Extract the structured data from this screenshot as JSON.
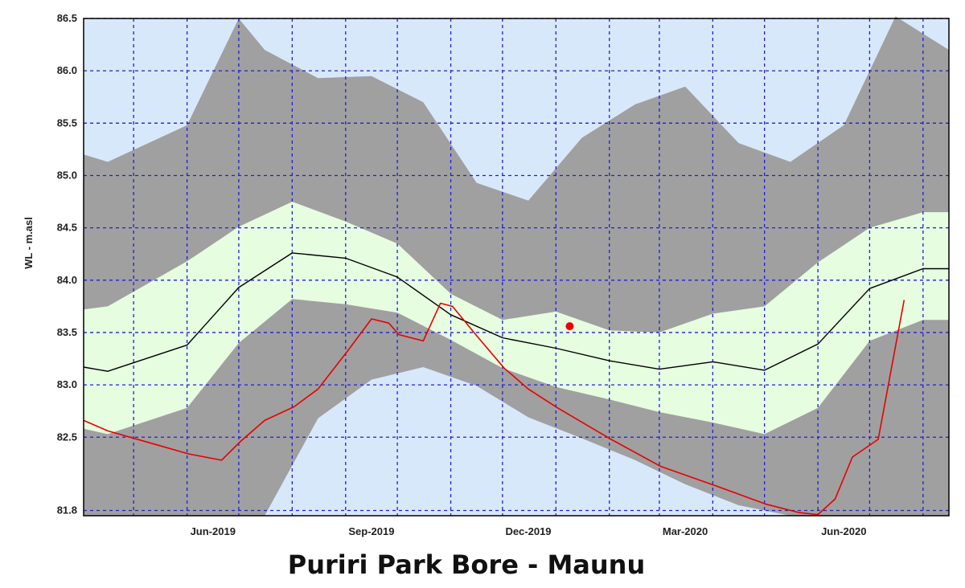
{
  "caption": "Puriri Park Bore - Maunu",
  "chart_data": {
    "type": "area",
    "ylabel": "WL - m.asl",
    "ylim": [
      81.75,
      86.5
    ],
    "xlim": [
      "2019-04-01",
      "2020-08-15"
    ],
    "y_ticks": [
      81.8,
      82.5,
      83.0,
      83.5,
      84.0,
      84.5,
      85.0,
      85.5,
      86.0,
      86.5
    ],
    "y_tick_labels": [
      "81.8",
      "82.5",
      "83.0",
      "83.5",
      "84.0",
      "84.5",
      "85.0",
      "85.5",
      "86.0",
      "86.5"
    ],
    "x_ticks": [
      "2019-06-15",
      "2019-09-15",
      "2019-12-15",
      "2020-03-15",
      "2020-06-15"
    ],
    "x_tick_labels": [
      "Jun-2019",
      "Sep-2019",
      "Dec-2019",
      "Mar-2020",
      "Jun-2020"
    ],
    "grid": true,
    "grid_x": [
      "2019-04-30",
      "2019-05-31",
      "2019-06-30",
      "2019-07-31",
      "2019-08-31",
      "2019-09-30",
      "2019-10-31",
      "2019-11-30",
      "2019-12-31",
      "2020-01-31",
      "2020-02-29",
      "2020-03-31",
      "2020-04-30",
      "2020-05-31",
      "2020-06-30",
      "2020-07-31"
    ],
    "colors": {
      "background": "#d8e8fb",
      "grid": "#1f1fd8",
      "minmax_band": "#a0a0a0",
      "percentile_band": "#e6fde0",
      "median_line": "#000000",
      "observed_line": "#e80000",
      "current_point": "#ee0000"
    },
    "series": [
      {
        "kind": "band",
        "x": [
          "2019-04-01",
          "2019-04-15",
          "2019-05-31",
          "2019-06-30",
          "2019-07-15",
          "2019-08-15",
          "2019-09-15",
          "2019-10-15",
          "2019-11-15",
          "2019-12-15",
          "2020-01-15",
          "2020-02-15",
          "2020-03-15",
          "2020-04-15",
          "2020-05-15",
          "2020-06-15",
          "2020-07-15",
          "2020-08-15"
        ],
        "upper": [
          85.2,
          85.13,
          85.48,
          86.5,
          86.2,
          85.93,
          85.95,
          85.7,
          84.93,
          84.76,
          85.36,
          85.68,
          85.85,
          85.31,
          85.13,
          85.48,
          86.52,
          86.2
        ],
        "lower": [
          81.75,
          81.75,
          81.75,
          81.75,
          81.75,
          81.75,
          81.75,
          81.75,
          81.75,
          81.75,
          81.75,
          81.75,
          81.75,
          81.75,
          81.75,
          81.75,
          81.75,
          81.75
        ]
      },
      {
        "kind": "band",
        "x": [
          "2019-04-01",
          "2019-04-15",
          "2019-05-31",
          "2019-06-30",
          "2019-07-15",
          "2019-08-15",
          "2019-09-15",
          "2019-10-15",
          "2019-11-15",
          "2019-12-15",
          "2020-01-15",
          "2020-02-15",
          "2020-03-15",
          "2020-04-15",
          "2020-05-15",
          "2020-06-15",
          "2020-07-15",
          "2020-08-15"
        ],
        "upper": [
          81.75,
          81.75,
          81.75,
          81.75,
          81.75,
          82.68,
          83.05,
          83.17,
          82.99,
          82.69,
          82.49,
          82.28,
          82.05,
          81.85,
          81.75,
          81.75,
          81.75,
          81.75
        ],
        "lower": [
          81.75,
          81.75,
          81.75,
          81.75,
          81.75,
          81.75,
          81.75,
          81.75,
          81.75,
          81.75,
          81.75,
          81.75,
          81.75,
          81.75,
          81.75,
          81.75,
          81.75,
          81.75
        ]
      },
      {
        "kind": "band",
        "x": [
          "2019-04-01",
          "2019-04-15",
          "2019-05-31",
          "2019-06-30",
          "2019-07-31",
          "2019-08-31",
          "2019-09-30",
          "2019-10-31",
          "2019-11-30",
          "2019-12-31",
          "2020-01-31",
          "2020-02-29",
          "2020-03-31",
          "2020-04-30",
          "2020-05-31",
          "2020-06-30",
          "2020-07-31",
          "2020-08-15"
        ],
        "upper": [
          83.72,
          83.75,
          84.18,
          84.51,
          84.75,
          84.56,
          84.35,
          83.87,
          83.62,
          83.7,
          83.52,
          83.5,
          83.68,
          83.75,
          84.17,
          84.5,
          84.65,
          84.65
        ],
        "lower": [
          82.58,
          82.53,
          82.78,
          83.4,
          83.82,
          83.77,
          83.69,
          83.43,
          83.16,
          82.98,
          82.86,
          82.74,
          82.64,
          82.53,
          82.78,
          83.42,
          83.62,
          83.62
        ]
      },
      {
        "kind": "line",
        "x": [
          "2019-04-01",
          "2019-04-15",
          "2019-05-31",
          "2019-06-30",
          "2019-07-31",
          "2019-08-31",
          "2019-09-30",
          "2019-10-31",
          "2019-11-30",
          "2019-12-31",
          "2020-01-31",
          "2020-02-29",
          "2020-03-31",
          "2020-04-30",
          "2020-05-31",
          "2020-06-30",
          "2020-07-31",
          "2020-08-15"
        ],
        "y": [
          83.17,
          83.13,
          83.38,
          83.93,
          84.26,
          84.21,
          84.03,
          83.67,
          83.45,
          83.35,
          83.23,
          83.15,
          83.22,
          83.14,
          83.39,
          83.92,
          84.11,
          84.11
        ]
      },
      {
        "kind": "line",
        "x": [
          "2019-04-01",
          "2019-04-15",
          "2019-05-15",
          "2019-06-01",
          "2019-06-20",
          "2019-07-01",
          "2019-07-15",
          "2019-08-01",
          "2019-08-15",
          "2019-09-01",
          "2019-09-15",
          "2019-09-25",
          "2019-10-01",
          "2019-10-15",
          "2019-10-25",
          "2019-11-01",
          "2019-11-15",
          "2019-12-01",
          "2019-12-15",
          "2020-01-01",
          "2020-02-01",
          "2020-03-01",
          "2020-04-01",
          "2020-05-01",
          "2020-05-20",
          "2020-05-31",
          "2020-06-10",
          "2020-06-20",
          "2020-07-05",
          "2020-07-20"
        ],
        "y": [
          82.66,
          82.56,
          82.42,
          82.34,
          82.28,
          82.46,
          82.66,
          82.79,
          82.96,
          83.32,
          83.63,
          83.59,
          83.48,
          83.42,
          83.78,
          83.75,
          83.47,
          83.16,
          82.96,
          82.78,
          82.48,
          82.22,
          82.04,
          81.86,
          81.78,
          81.76,
          81.91,
          82.31,
          82.48,
          83.81
        ]
      },
      {
        "kind": "point",
        "x": "2020-01-08",
        "y": 83.56
      }
    ]
  }
}
